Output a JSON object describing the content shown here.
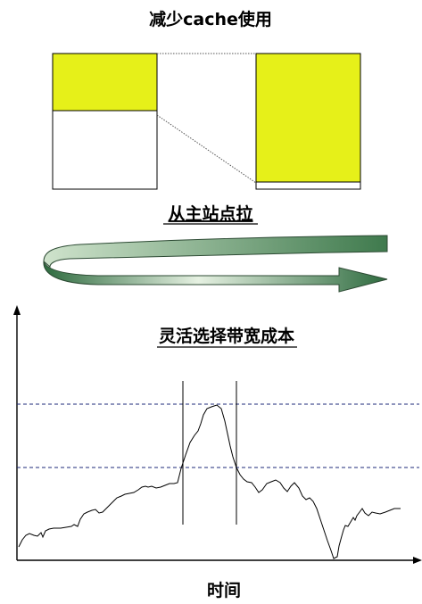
{
  "top_section": {
    "title": "减少cache使用",
    "left_block": {
      "fill_fraction": 0.42,
      "fill_color": "#e6f019"
    },
    "right_block": {
      "fill_fraction": 0.95,
      "fill_color": "#e6f019"
    }
  },
  "middle_section": {
    "label": "从主站点拉",
    "arrow_gradient": [
      "#2e6b3f",
      "#dfeedd"
    ]
  },
  "chart": {
    "title": "灵活选择带宽成本",
    "xlabel": "时间",
    "dash_color": "#1c2a7a"
  }
}
